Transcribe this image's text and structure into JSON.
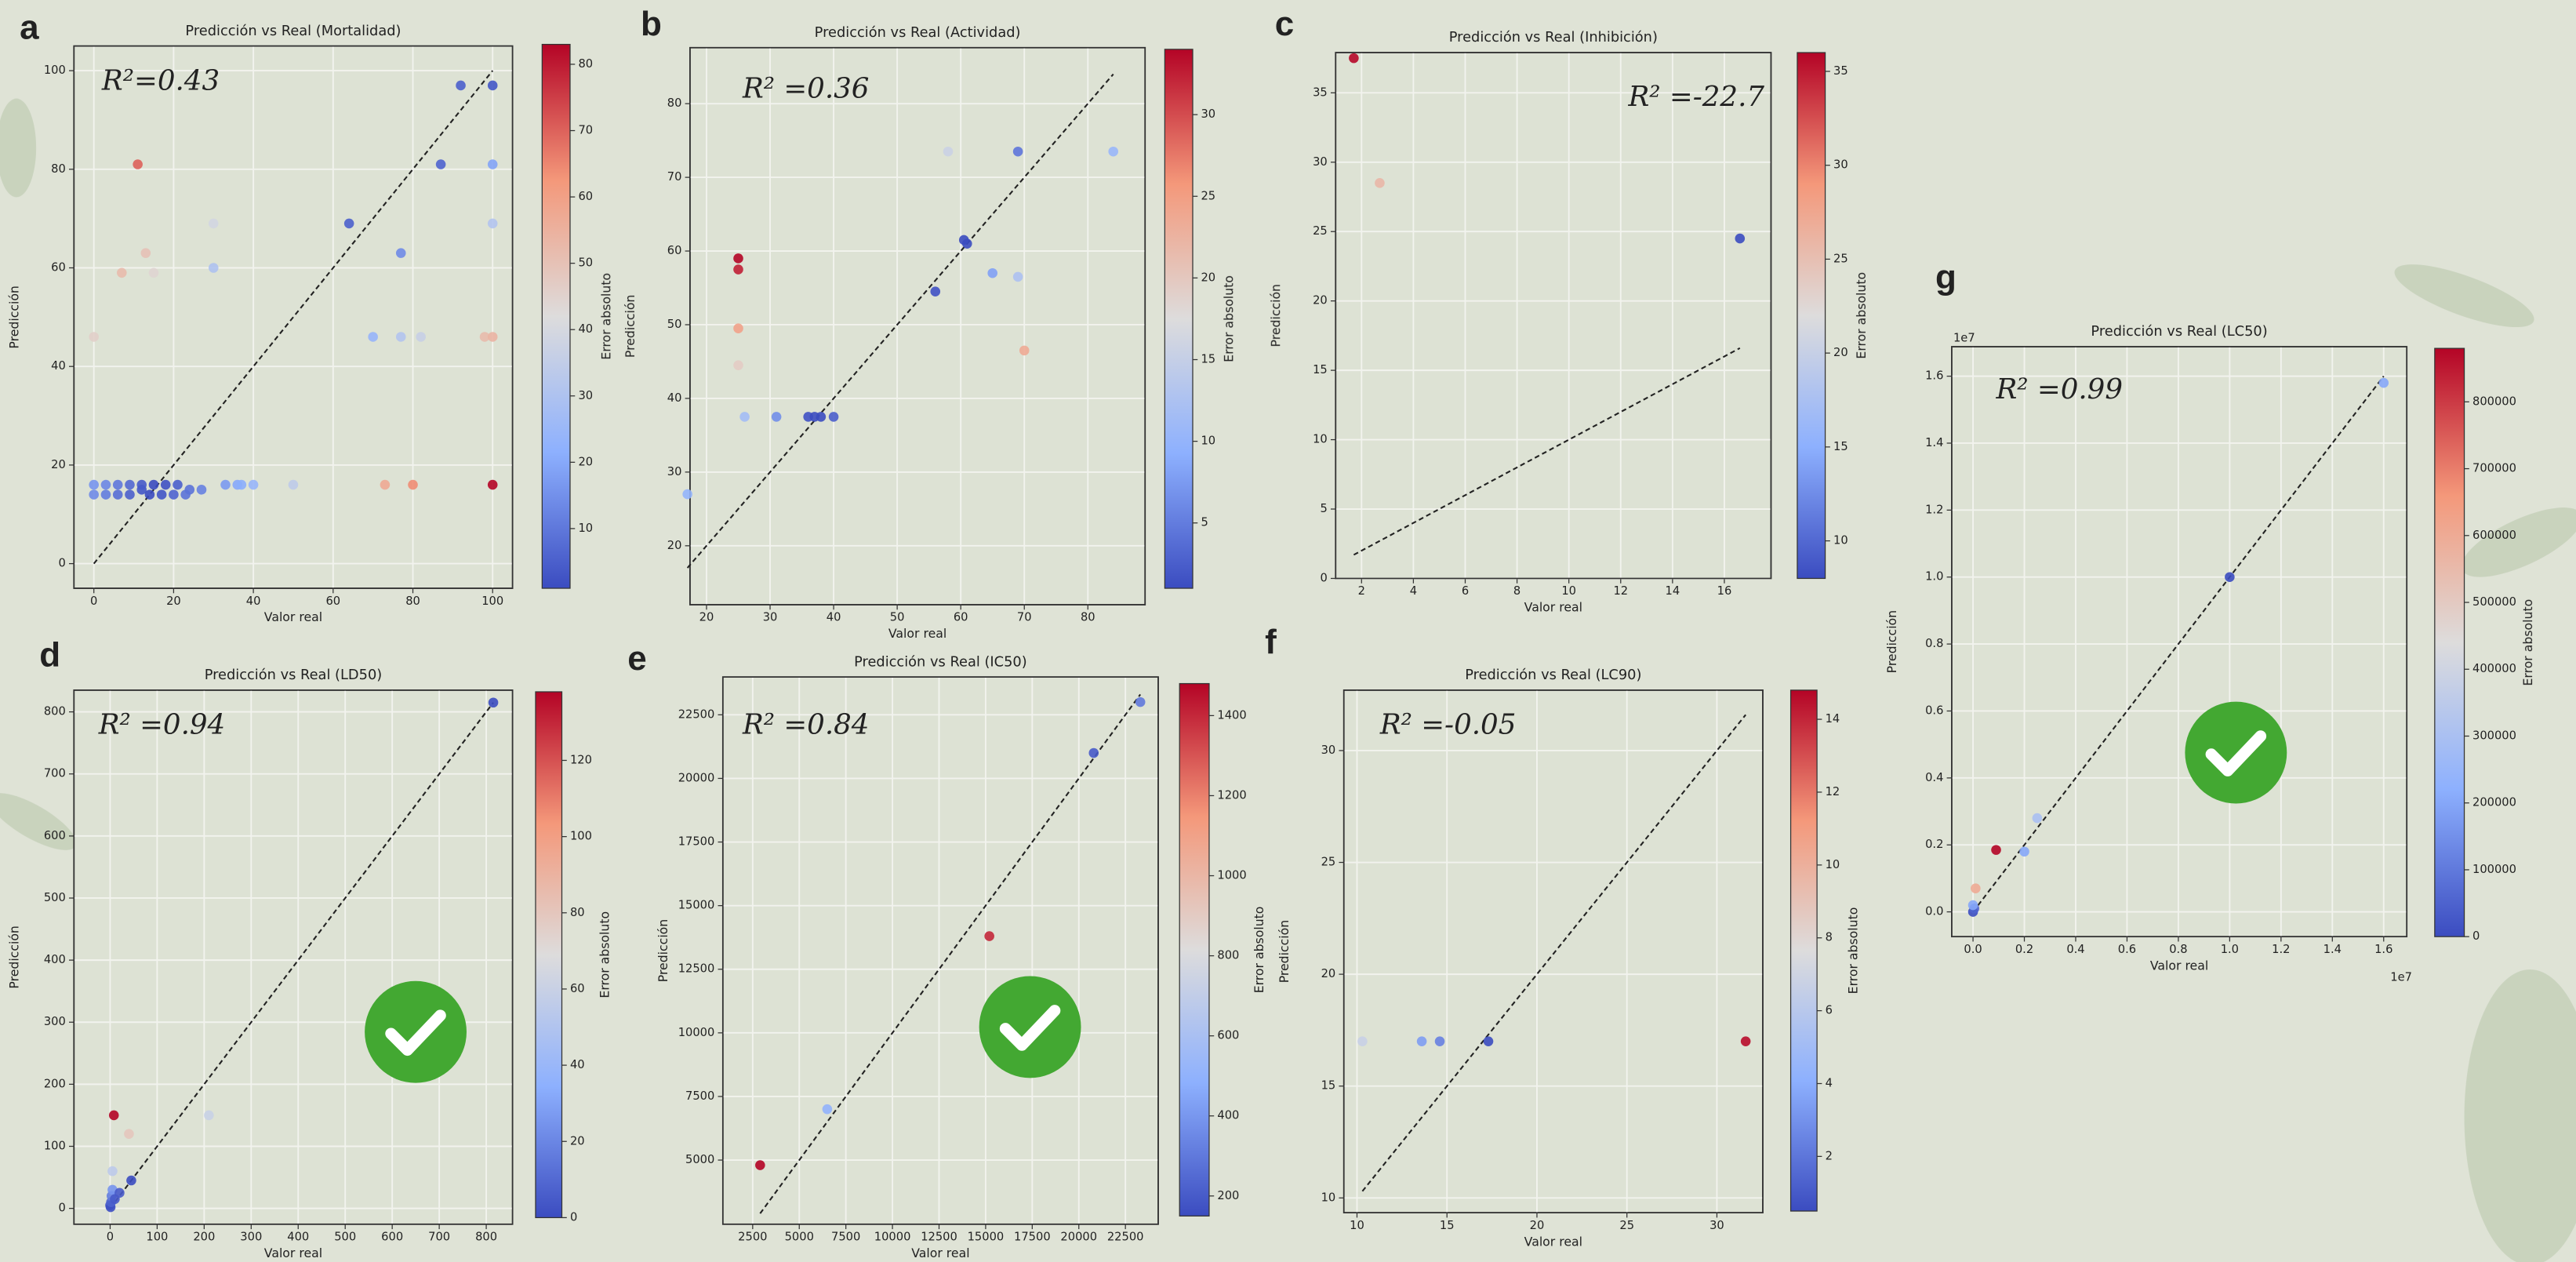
{
  "chart_data": [
    {
      "type": "scatter",
      "panel": "a",
      "title": "Predicción vs Real (Mortalidad)",
      "annotation": "R²=0.43",
      "xlabel": "Valor real",
      "ylabel": "Predicción",
      "x": [
        0,
        0,
        3,
        3,
        6,
        6,
        9,
        9,
        12,
        12,
        14,
        15,
        17,
        18,
        20,
        21,
        23,
        24,
        27,
        33,
        36,
        37,
        40,
        50,
        73,
        80,
        100,
        0,
        7,
        11,
        13,
        15,
        30,
        30,
        64,
        70,
        77,
        77,
        82,
        87,
        92,
        100,
        100,
        100,
        98,
        100
      ],
      "y": [
        14,
        16,
        14,
        16,
        14,
        16,
        14,
        16,
        15,
        16,
        14,
        16,
        14,
        16,
        14,
        16,
        14,
        15,
        15,
        16,
        16,
        16,
        16,
        16,
        16,
        16,
        16,
        46,
        59,
        81,
        63,
        59,
        69,
        60,
        69,
        46,
        63,
        46,
        46,
        81,
        97,
        97,
        81,
        69,
        46,
        46
      ],
      "xlim": [
        -5,
        105
      ],
      "ylim": [
        -5,
        105
      ],
      "xticks": [
        0,
        20,
        40,
        60,
        80,
        100
      ],
      "yticks": [
        0,
        20,
        40,
        60,
        80,
        100
      ],
      "grid": true,
      "colorbar": {
        "label": "Error absoluto",
        "lim": [
          1,
          83
        ],
        "ticks": [
          10,
          20,
          30,
          40,
          50,
          60,
          70,
          80
        ]
      }
    },
    {
      "type": "scatter",
      "panel": "b",
      "title": "Predicción vs Real (Actividad)",
      "annotation": "R² =0.36",
      "xlabel": "Valor real",
      "ylabel": "Predicción",
      "x": [
        17,
        25,
        25,
        25,
        25,
        26,
        31,
        36,
        37,
        38,
        40,
        56,
        58,
        60.5,
        61,
        65,
        69,
        69,
        70,
        84
      ],
      "y": [
        27,
        59,
        57.5,
        49.5,
        44.5,
        37.5,
        37.5,
        37.5,
        37.5,
        37.5,
        37.5,
        54.5,
        73.5,
        61.5,
        61,
        57,
        73.5,
        56.5,
        46.5,
        73.5
      ],
      "xlim": [
        17.4,
        89
      ],
      "ylim": [
        12,
        87.6
      ],
      "xticks": [
        20,
        30,
        40,
        50,
        60,
        70,
        80
      ],
      "yticks": [
        20,
        30,
        40,
        50,
        60,
        70,
        80
      ],
      "grid": true,
      "colorbar": {
        "label": "Error absoluto",
        "lim": [
          1,
          34
        ],
        "ticks": [
          5,
          10,
          15,
          20,
          25,
          30
        ]
      }
    },
    {
      "type": "scatter",
      "panel": "c",
      "title": "Predicción vs Real (Inhibición)",
      "annotation": "R² =-22.7",
      "xlabel": "Valor real",
      "ylabel": "Predicción",
      "x": [
        1.7,
        2.7,
        16.6
      ],
      "y": [
        37.5,
        28.5,
        24.5
      ],
      "xlim": [
        1.0,
        17.8
      ],
      "ylim": [
        0,
        37.9
      ],
      "xticks": [
        2,
        4,
        6,
        8,
        10,
        12,
        14,
        16
      ],
      "yticks": [
        0,
        5,
        10,
        15,
        20,
        25,
        30,
        35
      ],
      "grid": true,
      "colorbar": {
        "label": "Error absoluto",
        "lim": [
          8,
          36
        ],
        "ticks": [
          10,
          15,
          20,
          25,
          30,
          35
        ]
      }
    },
    {
      "type": "scatter",
      "panel": "d",
      "title": "Predicción vs Real (LD50)",
      "annotation": "R² =0.94",
      "xlabel": "Valor real",
      "ylabel": "Predicción",
      "x": [
        0,
        1,
        2,
        3,
        5,
        5,
        8,
        10,
        20,
        40,
        45,
        210,
        815
      ],
      "y": [
        5,
        2,
        10,
        20,
        30,
        60,
        150,
        15,
        25,
        120,
        45,
        150,
        815
      ],
      "xlim": [
        -77,
        856
      ],
      "ylim": [
        -25.5,
        835
      ],
      "xticks": [
        0,
        100,
        200,
        300,
        400,
        500,
        600,
        700,
        800
      ],
      "yticks": [
        0,
        100,
        200,
        300,
        400,
        500,
        600,
        700,
        800
      ],
      "grid": true,
      "colorbar": {
        "label": "Error absoluto",
        "lim": [
          0,
          138
        ],
        "ticks": [
          0,
          20,
          40,
          60,
          80,
          100,
          120
        ]
      }
    },
    {
      "type": "scatter",
      "panel": "e",
      "title": "Predicción vs Real (IC50)",
      "annotation": "R² =0.84",
      "xlabel": "Valor real",
      "ylabel": "Predicción",
      "x": [
        2900,
        6500,
        15200,
        20800,
        23300
      ],
      "y": [
        4800,
        7000,
        13800,
        21000,
        23000
      ],
      "xlim": [
        900,
        24260
      ],
      "ylim": [
        2480,
        23985
      ],
      "xticks": [
        2500,
        5000,
        7500,
        10000,
        12500,
        15000,
        17500,
        20000,
        22500
      ],
      "yticks": [
        5000,
        7500,
        10000,
        12500,
        15000,
        17500,
        20000,
        22500
      ],
      "grid": true,
      "colorbar": {
        "label": "Error absoluto",
        "lim": [
          150,
          1480
        ],
        "ticks": [
          200,
          400,
          600,
          800,
          1000,
          1200,
          1400
        ]
      }
    },
    {
      "type": "scatter",
      "panel": "f",
      "title": "Predicción vs Real (LC90)",
      "annotation": "R² =-0.05",
      "xlabel": "Valor real",
      "ylabel": "Predicción",
      "x": [
        10.3,
        13.6,
        14.6,
        17.3,
        31.6
      ],
      "y": [
        17,
        17,
        17,
        17,
        17
      ],
      "xlim": [
        9.27,
        32.55
      ],
      "ylim": [
        9.34,
        32.7
      ],
      "xticks": [
        10,
        15,
        20,
        25,
        30
      ],
      "yticks": [
        10,
        15,
        20,
        25,
        30
      ],
      "grid": true,
      "colorbar": {
        "label": "Error absoluto",
        "lim": [
          0.5,
          14.8
        ],
        "ticks": [
          2,
          4,
          6,
          8,
          10,
          12,
          14
        ]
      }
    },
    {
      "type": "scatter",
      "panel": "g",
      "title": "Predicción vs Real (LC50)",
      "annotation": "R² =0.99",
      "xlabel": "Valor real",
      "ylabel": "Predicción",
      "x": [
        0,
        50000,
        0,
        100000,
        900000,
        2000000,
        2500000,
        10000000,
        16000000
      ],
      "y": [
        0,
        100000,
        200000,
        700000,
        1850000,
        1800000,
        2800000,
        10000000,
        15800000
      ],
      "xlim": [
        -830000,
        16900000
      ],
      "ylim": [
        -740000,
        16880000
      ],
      "xticks": [
        {
          "value": 0,
          "label": "0.0"
        },
        {
          "value": 2000000,
          "label": "0.2"
        },
        {
          "value": 4000000,
          "label": "0.4"
        },
        {
          "value": 6000000,
          "label": "0.6"
        },
        {
          "value": 8000000,
          "label": "0.8"
        },
        {
          "value": 10000000,
          "label": "1.0"
        },
        {
          "value": 12000000,
          "label": "1.2"
        },
        {
          "value": 14000000,
          "label": "1.4"
        },
        {
          "value": 16000000,
          "label": "1.6"
        }
      ],
      "yticks": [
        {
          "value": 0,
          "label": "0.0"
        },
        {
          "value": 2000000,
          "label": "0.2"
        },
        {
          "value": 4000000,
          "label": "0.4"
        },
        {
          "value": 6000000,
          "label": "0.6"
        },
        {
          "value": 8000000,
          "label": "0.8"
        },
        {
          "value": 10000000,
          "label": "1.0"
        },
        {
          "value": 12000000,
          "label": "1.2"
        },
        {
          "value": 14000000,
          "label": "1.4"
        },
        {
          "value": 16000000,
          "label": "1.6"
        }
      ],
      "x_offset_label": "1e7",
      "y_offset_label": "1e7",
      "grid": true,
      "colorbar": {
        "label": "Error absoluto",
        "lim": [
          0,
          880000
        ],
        "ticks": [
          0,
          100000,
          200000,
          300000,
          400000,
          500000,
          600000,
          700000,
          800000
        ]
      }
    }
  ]
}
